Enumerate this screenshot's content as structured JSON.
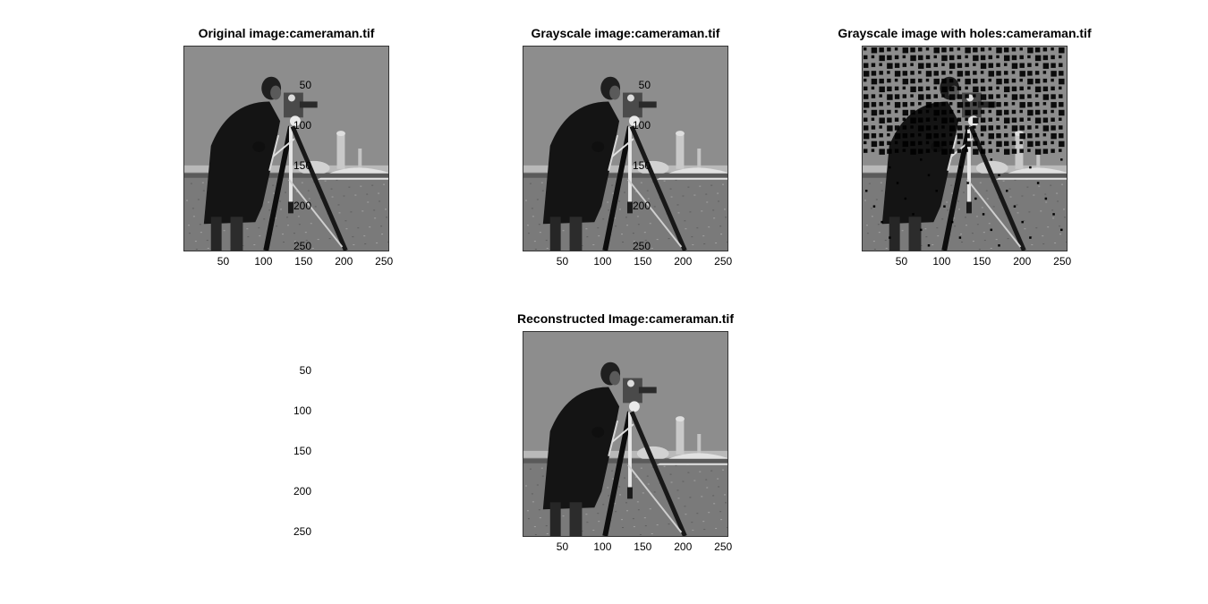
{
  "figure": {
    "panels": [
      {
        "title": "Original image:cameraman.tif",
        "variant": "original"
      },
      {
        "title": "Grayscale image:cameraman.tif",
        "variant": "grayscale"
      },
      {
        "title": "Grayscale image with holes:cameraman.tif",
        "variant": "holes"
      },
      {
        "title": "Reconstructed Image:cameraman.tif",
        "variant": "reconstructed"
      }
    ],
    "axis": {
      "x_ticks": [
        "50",
        "100",
        "150",
        "200",
        "250"
      ],
      "y_ticks": [
        "50",
        "100",
        "150",
        "200",
        "250"
      ],
      "range": [
        0.5,
        256.5
      ]
    }
  }
}
